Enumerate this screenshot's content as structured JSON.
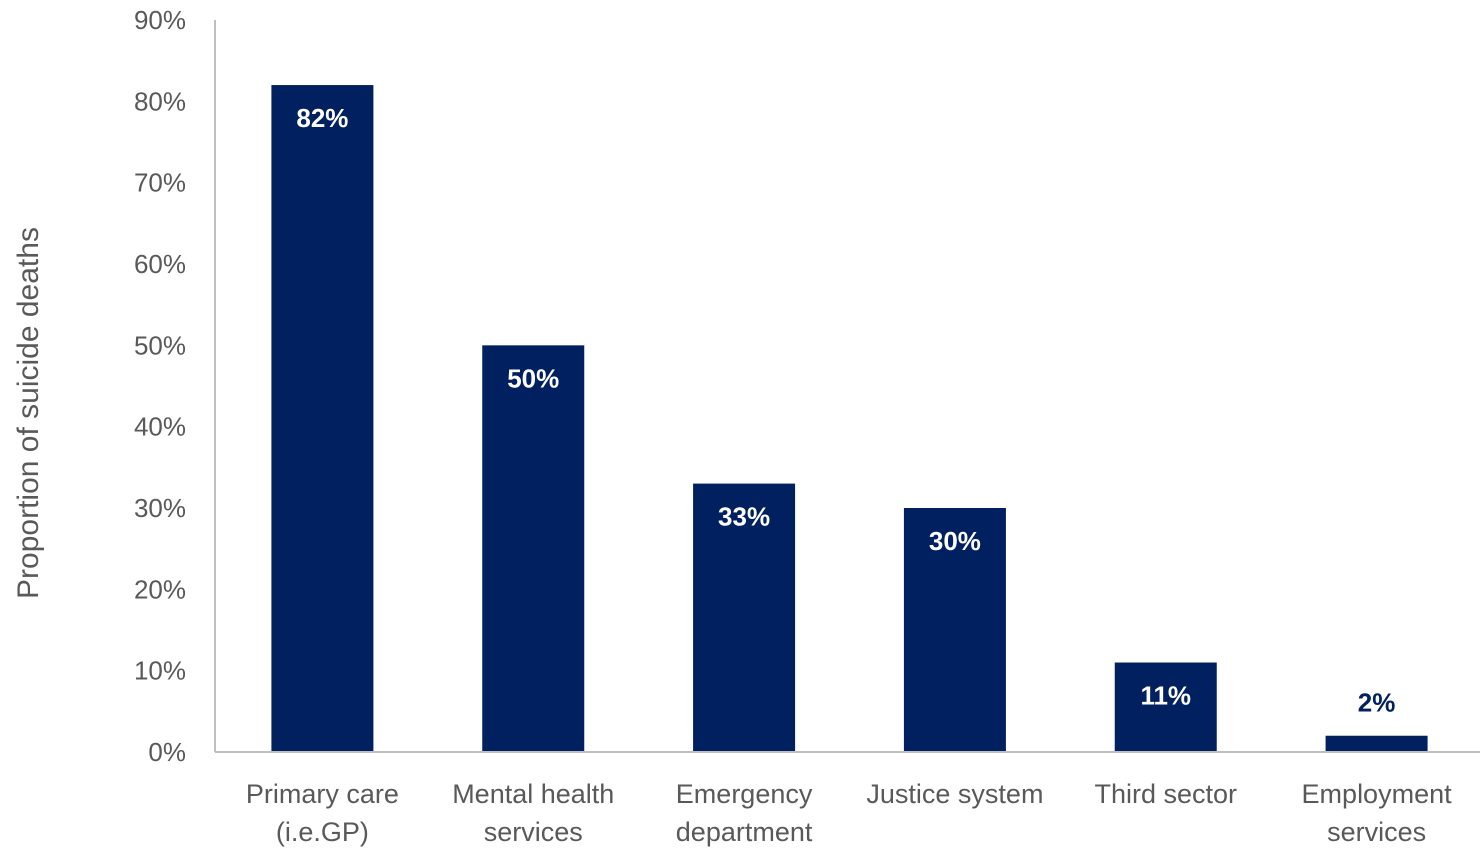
{
  "chart_data": {
    "type": "bar",
    "title": "",
    "xlabel": "",
    "ylabel": "Proportion of suicide deaths",
    "ylim": [
      0,
      90
    ],
    "yticks": [
      "0%",
      "10%",
      "20%",
      "30%",
      "40%",
      "50%",
      "60%",
      "70%",
      "80%",
      "90%"
    ],
    "grid": false,
    "categories": [
      [
        "Primary care",
        "(i.e.GP)"
      ],
      [
        "Mental health",
        "services"
      ],
      [
        "Emergency",
        "department"
      ],
      [
        "Justice system"
      ],
      [
        "Third sector"
      ],
      [
        "Employment",
        "services"
      ]
    ],
    "values": [
      82,
      50,
      33,
      30,
      11,
      2
    ],
    "data_labels": [
      "82%",
      "50%",
      "33%",
      "30%",
      "11%",
      "2%"
    ],
    "colors": {
      "bar": "#002060",
      "label_inside": "#ffffff",
      "label_outside": "#002060",
      "axis": "#bfbfbf",
      "text": "#595959"
    }
  }
}
